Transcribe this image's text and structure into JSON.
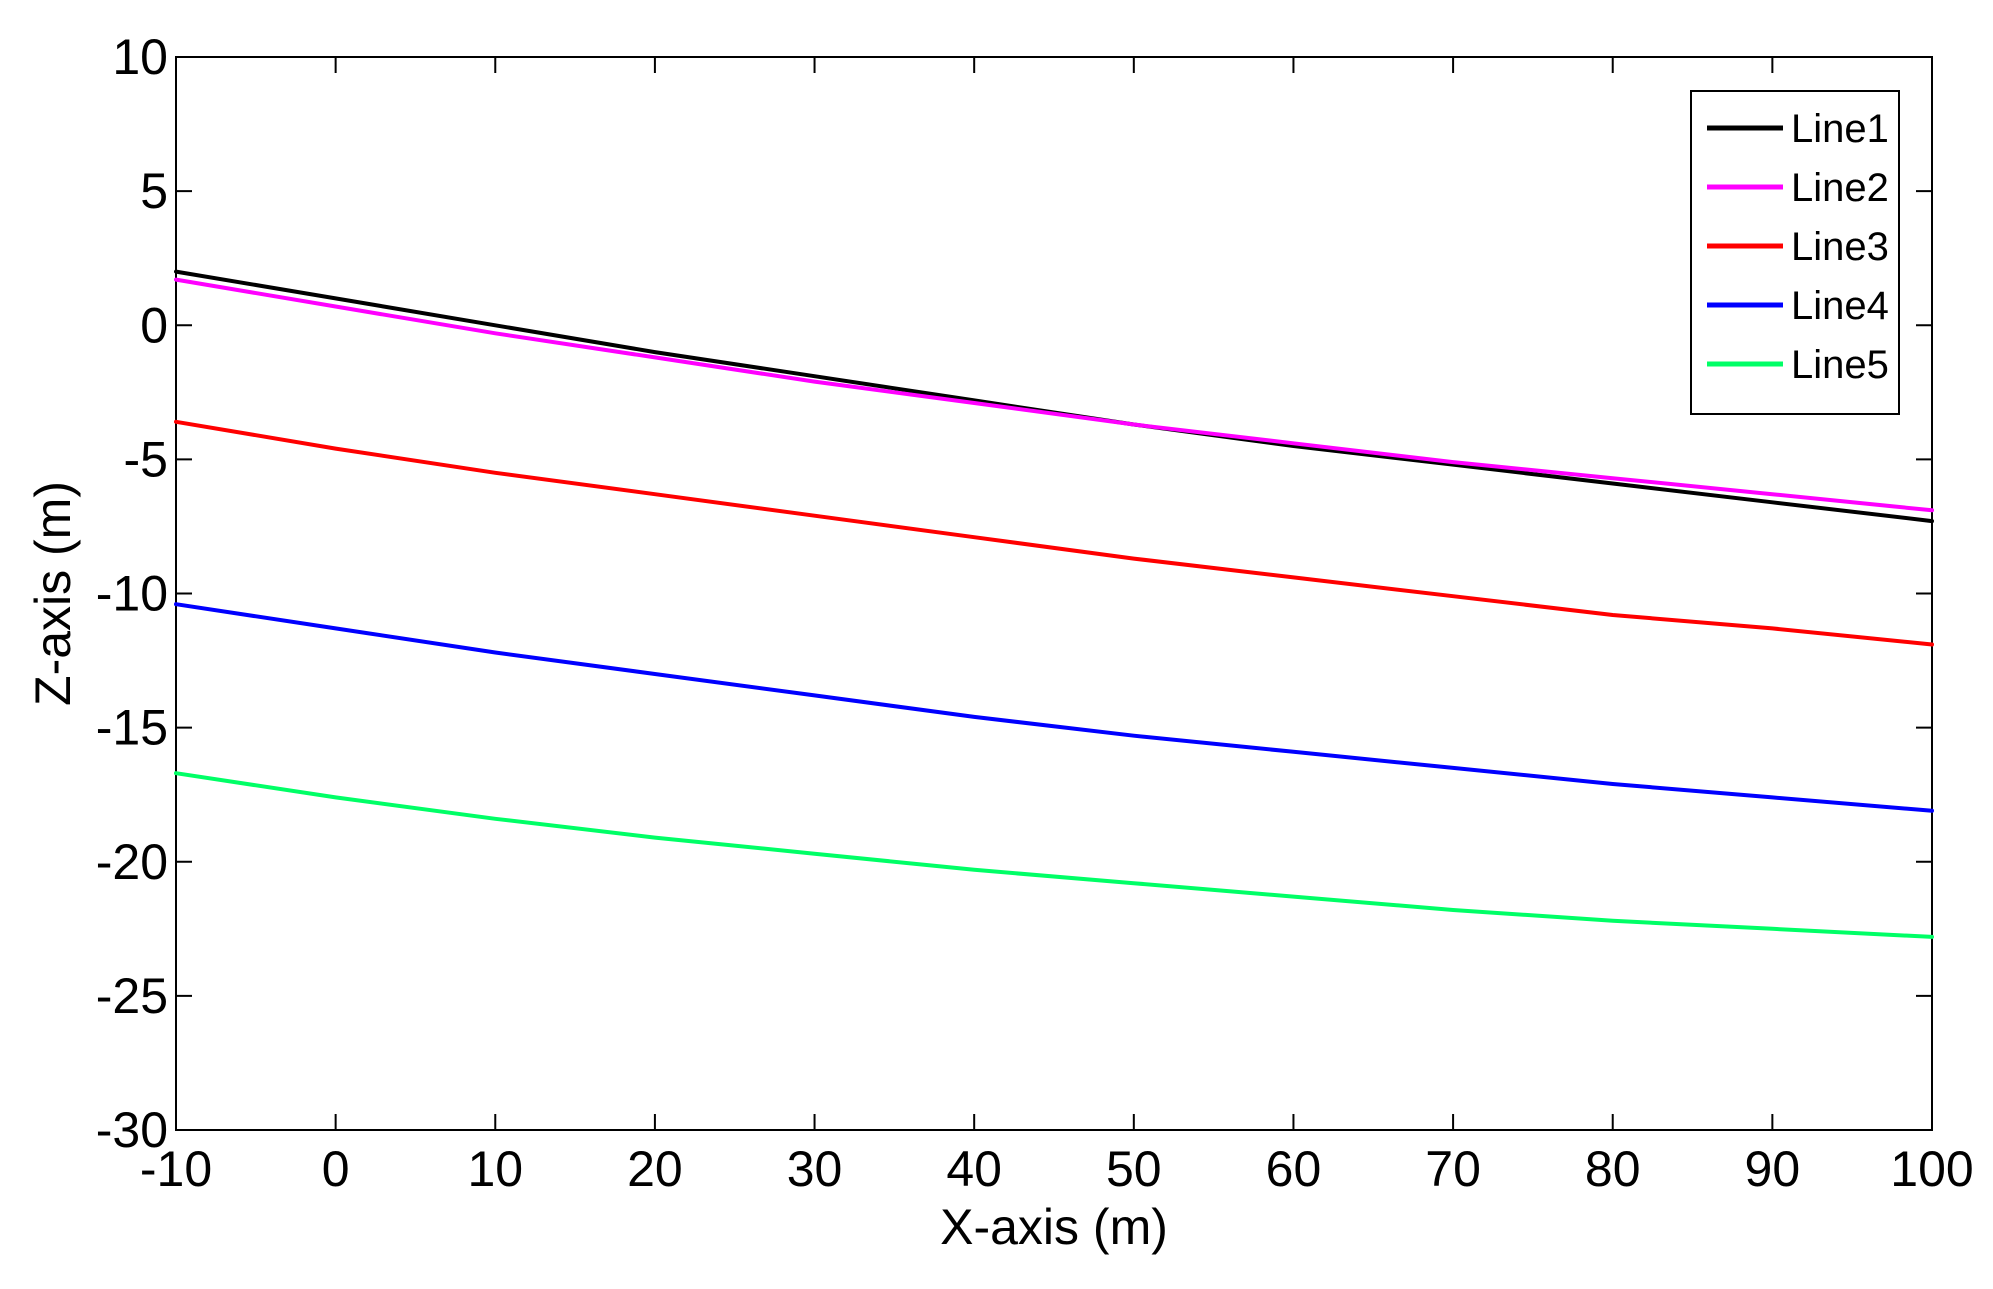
{
  "chart_data": {
    "type": "line",
    "title": "",
    "xlabel": "X-axis (m)",
    "ylabel": "Z-axis (m)",
    "xlim": [
      -10,
      100
    ],
    "ylim": [
      -30,
      10
    ],
    "x_ticks": [
      -10,
      0,
      10,
      20,
      30,
      40,
      50,
      60,
      70,
      80,
      90,
      100
    ],
    "y_ticks": [
      10,
      5,
      0,
      -5,
      -10,
      -15,
      -20,
      -25,
      -30
    ],
    "grid": false,
    "legend_position": "top-right",
    "x": [
      -10,
      0,
      10,
      20,
      30,
      40,
      50,
      60,
      70,
      80,
      90,
      100
    ],
    "series": [
      {
        "name": "Line1",
        "color": "#000000",
        "values": [
          2.0,
          1.0,
          0.0,
          -1.0,
          -1.9,
          -2.8,
          -3.7,
          -4.5,
          -5.2,
          -5.9,
          -6.6,
          -7.3
        ]
      },
      {
        "name": "Line2",
        "color": "#ff00ff",
        "values": [
          1.7,
          0.7,
          -0.3,
          -1.2,
          -2.1,
          -2.9,
          -3.7,
          -4.4,
          -5.1,
          -5.7,
          -6.3,
          -6.9
        ]
      },
      {
        "name": "Line3",
        "color": "#ff0000",
        "values": [
          -3.6,
          -4.6,
          -5.5,
          -6.3,
          -7.1,
          -7.9,
          -8.7,
          -9.4,
          -10.1,
          -10.8,
          -11.3,
          -11.9
        ]
      },
      {
        "name": "Line4",
        "color": "#0000ff",
        "values": [
          -10.4,
          -11.3,
          -12.2,
          -13.0,
          -13.8,
          -14.6,
          -15.3,
          -15.9,
          -16.5,
          -17.1,
          -17.6,
          -18.1
        ]
      },
      {
        "name": "Line5",
        "color": "#00ff66",
        "values": [
          -16.7,
          -17.6,
          -18.4,
          -19.1,
          -19.7,
          -20.3,
          -20.8,
          -21.3,
          -21.8,
          -22.2,
          -22.5,
          -22.8
        ]
      }
    ]
  }
}
